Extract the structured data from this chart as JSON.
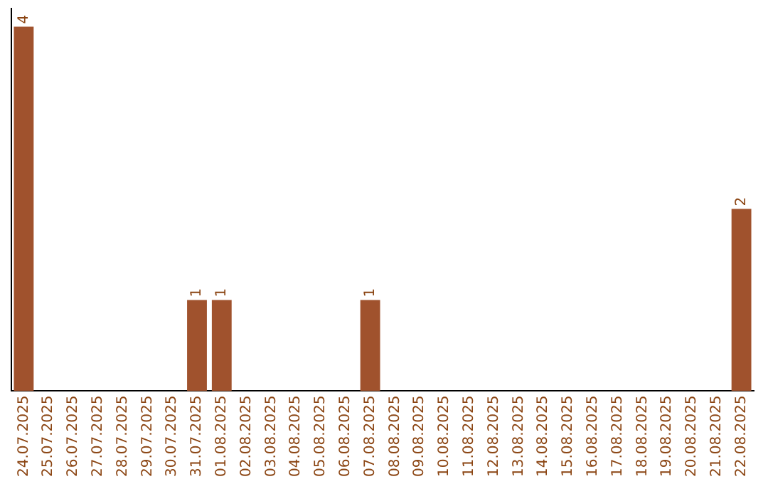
{
  "chart_data": {
    "type": "bar",
    "categories": [
      "24.07.2025",
      "25.07.2025",
      "26.07.2025",
      "27.07.2025",
      "28.07.2025",
      "29.07.2025",
      "30.07.2025",
      "31.07.2025",
      "01.08.2025",
      "02.08.2025",
      "03.08.2025",
      "04.08.2025",
      "05.08.2025",
      "06.08.2025",
      "07.08.2025",
      "08.08.2025",
      "09.08.2025",
      "10.08.2025",
      "11.08.2025",
      "12.08.2025",
      "13.08.2025",
      "14.08.2025",
      "15.08.2025",
      "16.08.2025",
      "17.08.2025",
      "18.08.2025",
      "19.08.2025",
      "20.08.2025",
      "21.08.2025",
      "22.08.2025"
    ],
    "values": [
      4,
      0,
      0,
      0,
      0,
      0,
      0,
      1,
      1,
      0,
      0,
      0,
      0,
      0,
      1,
      0,
      0,
      0,
      0,
      0,
      0,
      0,
      0,
      0,
      0,
      0,
      0,
      0,
      0,
      2
    ],
    "value_labels": [
      "4",
      null,
      null,
      null,
      null,
      null,
      null,
      "1",
      "1",
      null,
      null,
      null,
      null,
      null,
      "1",
      null,
      null,
      null,
      null,
      null,
      null,
      null,
      null,
      null,
      null,
      null,
      null,
      null,
      null,
      "2"
    ],
    "color": "#a0522d",
    "ylim": [
      0,
      4.2
    ],
    "tick_labels": "x",
    "grid": false,
    "legend": false
  }
}
